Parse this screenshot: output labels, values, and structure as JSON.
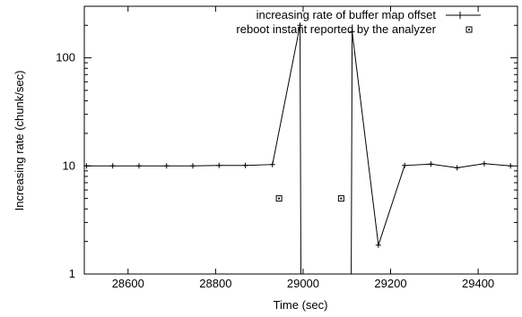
{
  "chart_data": {
    "type": "line",
    "xlabel": "Time (sec)",
    "ylabel": "Increasing rate (chunk/sec)",
    "xlim": [
      28500,
      29490
    ],
    "ylim": [
      1,
      300
    ],
    "yscale": "log",
    "grid": false,
    "legend_position": "top-right",
    "x_ticks": [
      28600,
      28800,
      29000,
      29200,
      29400
    ],
    "x_tick_labels": [
      "28600",
      "28800",
      "29000",
      "29200",
      "29400"
    ],
    "y_ticks": [
      1,
      10,
      100
    ],
    "y_tick_labels": [
      "1",
      "10",
      "100"
    ],
    "series": [
      {
        "name": "increasing rate of buffer map offset",
        "style": "line-with-plus-markers",
        "color": "#000000",
        "points": [
          {
            "x": 28505,
            "y": 10.0
          },
          {
            "x": 28565,
            "y": 10.0
          },
          {
            "x": 28625,
            "y": 10.0
          },
          {
            "x": 28688,
            "y": 10.0
          },
          {
            "x": 28748,
            "y": 10.0
          },
          {
            "x": 28808,
            "y": 10.1
          },
          {
            "x": 28868,
            "y": 10.1
          },
          {
            "x": 28930,
            "y": 10.3
          },
          {
            "x": 28993,
            "y": 200
          },
          {
            "x": 28995,
            "y": 1
          },
          {
            "x": 29110,
            "y": 1
          },
          {
            "x": 29112,
            "y": 175
          },
          {
            "x": 29172,
            "y": 1.85
          },
          {
            "x": 29232,
            "y": 10.1
          },
          {
            "x": 29292,
            "y": 10.4
          },
          {
            "x": 29352,
            "y": 9.6
          },
          {
            "x": 29414,
            "y": 10.5
          },
          {
            "x": 29474,
            "y": 10.0
          }
        ]
      },
      {
        "name": "reboot instant reported by the analyzer",
        "style": "square-markers",
        "color": "#000000",
        "points": [
          {
            "x": 28945,
            "y": 5.0
          },
          {
            "x": 29087,
            "y": 5.0
          }
        ]
      }
    ]
  }
}
